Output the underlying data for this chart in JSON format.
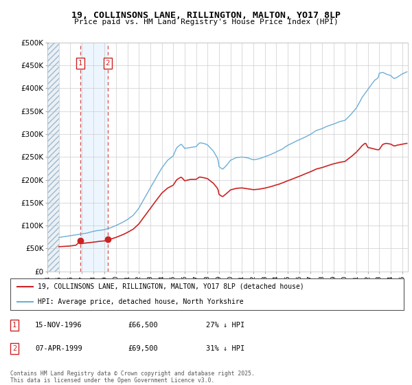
{
  "title": "19, COLLINSONS LANE, RILLINGTON, MALTON, YO17 8LP",
  "subtitle": "Price paid vs. HM Land Registry's House Price Index (HPI)",
  "ylim": [
    0,
    500000
  ],
  "yticks": [
    0,
    50000,
    100000,
    150000,
    200000,
    250000,
    300000,
    350000,
    400000,
    450000,
    500000
  ],
  "ytick_labels": [
    "£0",
    "£50K",
    "£100K",
    "£150K",
    "£200K",
    "£250K",
    "£300K",
    "£350K",
    "£400K",
    "£450K",
    "£500K"
  ],
  "xlim_start": 1994.0,
  "xlim_end": 2025.5,
  "hpi_color": "#6baed6",
  "price_color": "#cc2222",
  "purchase1_date": 1996.877,
  "purchase1_price": 66500,
  "purchase2_date": 1999.27,
  "purchase2_price": 69500,
  "legend_line1": "19, COLLINSONS LANE, RILLINGTON, MALTON, YO17 8LP (detached house)",
  "legend_line2": "HPI: Average price, detached house, North Yorkshire",
  "annotation1_date": "15-NOV-1996",
  "annotation1_price": "£66,500",
  "annotation1_hpi": "27% ↓ HPI",
  "annotation2_date": "07-APR-1999",
  "annotation2_price": "£69,500",
  "annotation2_hpi": "31% ↓ HPI",
  "footer": "Contains HM Land Registry data © Crown copyright and database right 2025.\nThis data is licensed under the Open Government Licence v3.0.",
  "background_color": "#ffffff"
}
